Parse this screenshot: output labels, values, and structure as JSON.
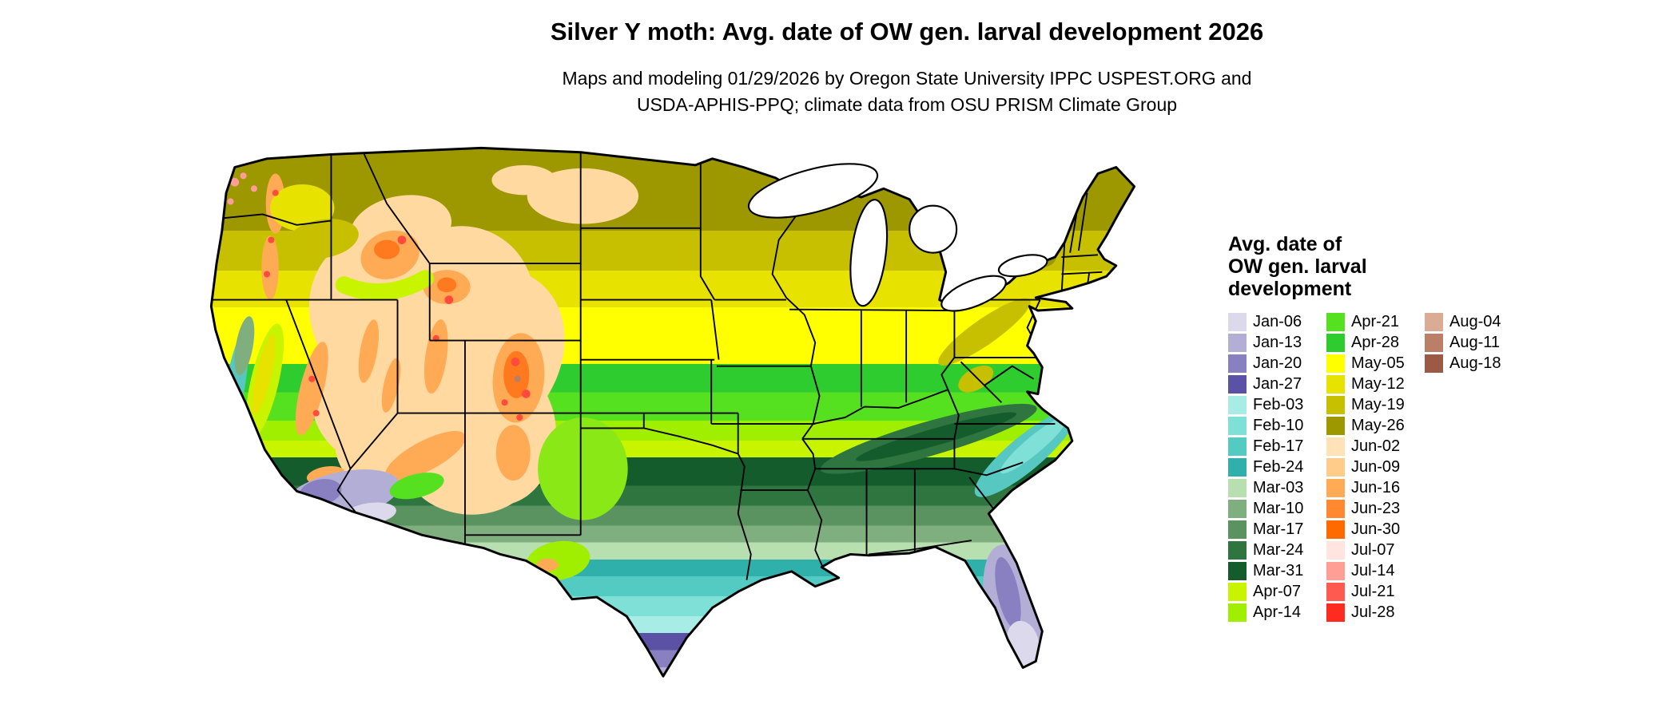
{
  "header": {
    "title": "Silver Y moth: Avg. date of OW gen. larval development 2026",
    "subtitle_line1": "Maps and modeling 01/29/2026 by Oregon State University IPPC USPEST.ORG and",
    "subtitle_line2": "USDA-APHIS-PPQ; climate data from OSU PRISM Climate Group"
  },
  "legend": {
    "title_lines": [
      "Avg. date of",
      "OW gen. larval",
      "development"
    ],
    "columns": [
      [
        {
          "label": "Jan-06",
          "color": "#dcd9ec"
        },
        {
          "label": "Jan-13",
          "color": "#b3aed6"
        },
        {
          "label": "Jan-20",
          "color": "#8880c0"
        },
        {
          "label": "Jan-27",
          "color": "#5b52a5"
        },
        {
          "label": "Feb-03",
          "color": "#a8ece6"
        },
        {
          "label": "Feb-10",
          "color": "#7fe0d8"
        },
        {
          "label": "Feb-17",
          "color": "#53cac2"
        },
        {
          "label": "Feb-24",
          "color": "#2fb0aa"
        },
        {
          "label": "Mar-03",
          "color": "#b7dfb0"
        },
        {
          "label": "Mar-10",
          "color": "#7fae7f"
        },
        {
          "label": "Mar-17",
          "color": "#5a935f"
        },
        {
          "label": "Mar-24",
          "color": "#2f7540"
        },
        {
          "label": "Mar-31",
          "color": "#155c2d"
        },
        {
          "label": "Apr-07",
          "color": "#c8f400"
        },
        {
          "label": "Apr-14",
          "color": "#a0ee00"
        }
      ],
      [
        {
          "label": "Apr-21",
          "color": "#55e020"
        },
        {
          "label": "Apr-28",
          "color": "#2ecc2e"
        },
        {
          "label": "May-05",
          "color": "#ffff00"
        },
        {
          "label": "May-12",
          "color": "#e8e200"
        },
        {
          "label": "May-19",
          "color": "#c6c000"
        },
        {
          "label": "May-26",
          "color": "#9e9800"
        },
        {
          "label": "Jun-02",
          "color": "#ffe2b8"
        },
        {
          "label": "Jun-09",
          "color": "#ffcc8a"
        },
        {
          "label": "Jun-16",
          "color": "#ffaa55"
        },
        {
          "label": "Jun-23",
          "color": "#ff8830"
        },
        {
          "label": "Jun-30",
          "color": "#ff6a00"
        },
        {
          "label": "Jul-07",
          "color": "#ffe4e0"
        },
        {
          "label": "Jul-14",
          "color": "#ff9e94"
        },
        {
          "label": "Jul-21",
          "color": "#ff5a50"
        },
        {
          "label": "Jul-28",
          "color": "#ff2a20"
        }
      ],
      [
        {
          "label": "Aug-04",
          "color": "#dcab96"
        },
        {
          "label": "Aug-11",
          "color": "#bb7f68"
        },
        {
          "label": "Aug-18",
          "color": "#9c5a46"
        }
      ]
    ]
  }
}
